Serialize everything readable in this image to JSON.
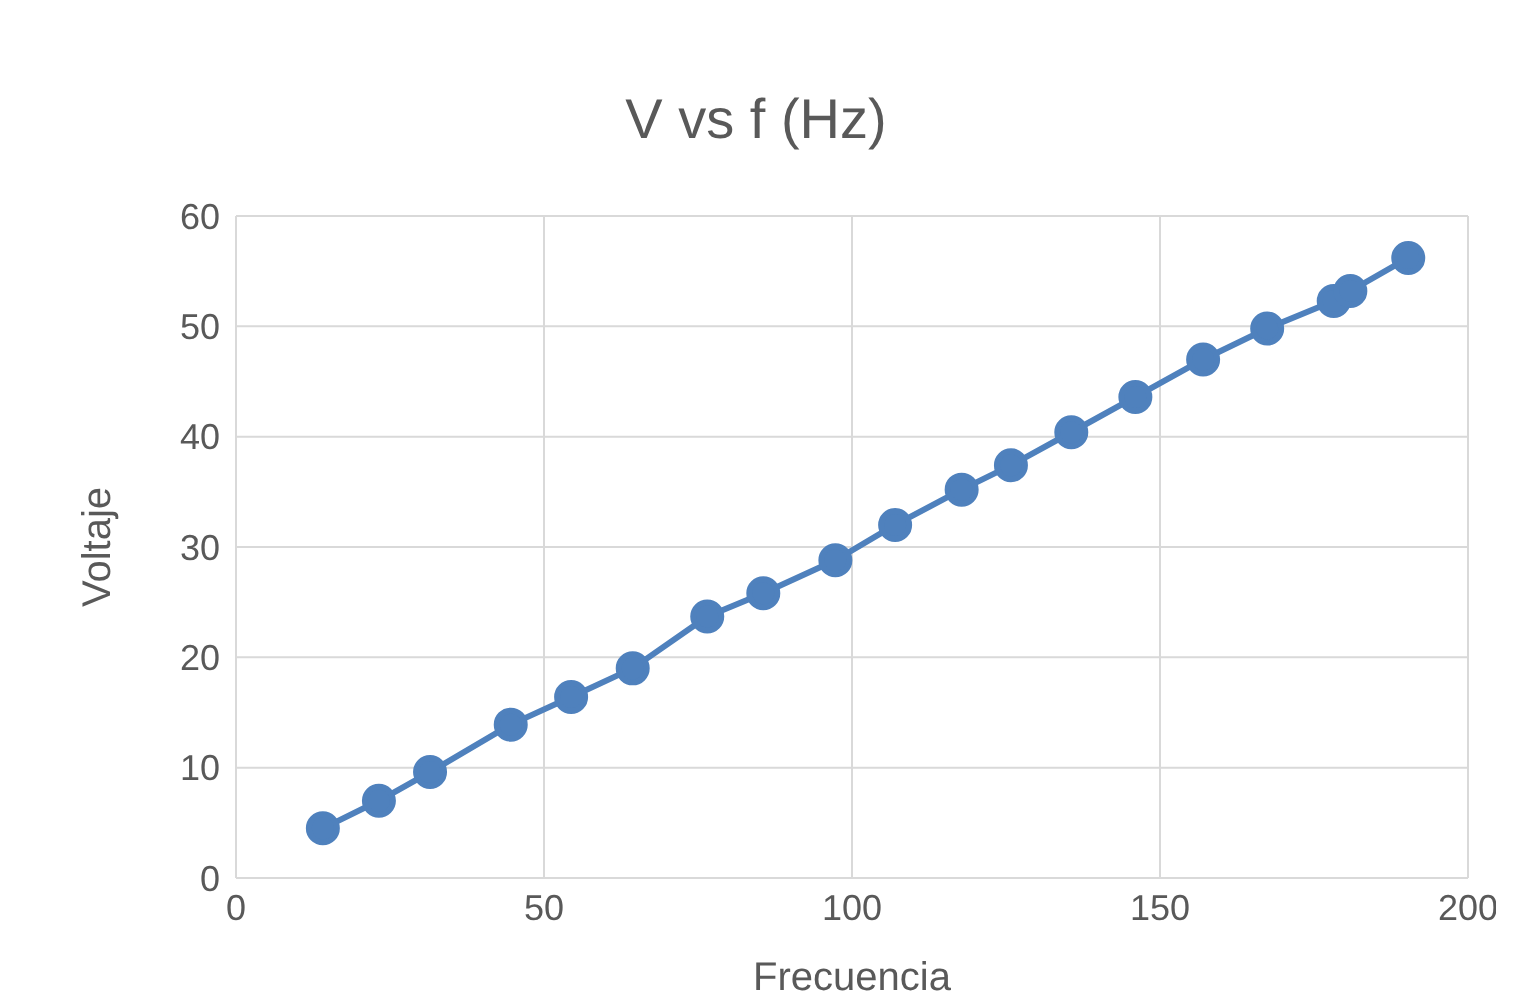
{
  "chart_data": {
    "type": "line",
    "title": "V vs f (Hz)",
    "xlabel": "Frecuencia",
    "ylabel": "Voltaje",
    "x": [
      14.1,
      23.2,
      31.5,
      44.6,
      54.4,
      64.4,
      76.5,
      85.6,
      97.3,
      107,
      117.8,
      125.8,
      135.6,
      146,
      157,
      167.4,
      178.2,
      180.9,
      190.3
    ],
    "series": [
      {
        "color": "#4f81bd",
        "values": [
          4.5,
          7.0,
          9.6,
          13.9,
          16.4,
          19.0,
          23.7,
          25.8,
          28.8,
          32.0,
          35.2,
          37.4,
          40.4,
          43.6,
          47.0,
          49.8,
          52.3,
          53.2,
          56.2
        ]
      }
    ],
    "xlim": [
      0,
      200
    ],
    "xticks": [
      0,
      50,
      100,
      150,
      200
    ],
    "ylim": [
      0,
      60
    ],
    "yticks": [
      0,
      10,
      20,
      30,
      40,
      50,
      60
    ],
    "grid": true,
    "marker": "circle",
    "line_style": "solid"
  }
}
